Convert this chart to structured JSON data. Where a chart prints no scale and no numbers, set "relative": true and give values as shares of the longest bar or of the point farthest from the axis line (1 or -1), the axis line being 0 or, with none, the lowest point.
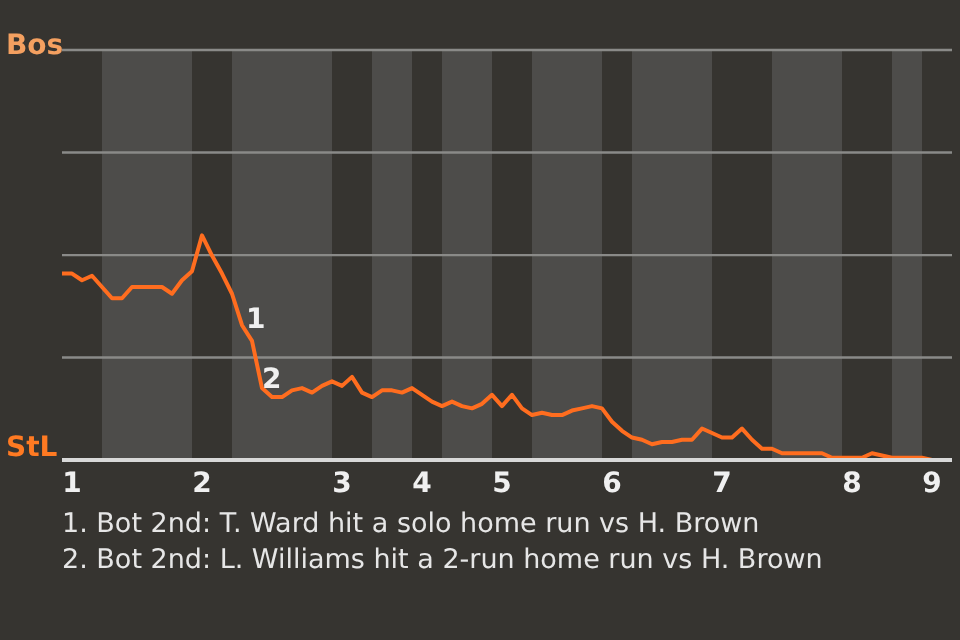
{
  "chart_data": {
    "type": "line",
    "relative": true,
    "categories": [
      null,
      "1",
      null,
      null,
      null,
      null,
      null,
      null,
      null,
      null,
      null,
      null,
      null,
      null,
      "2",
      null,
      null,
      null,
      null,
      null,
      null,
      null,
      null,
      null,
      null,
      null,
      null,
      null,
      "3",
      null,
      null,
      null,
      null,
      null,
      null,
      null,
      "4",
      null,
      null,
      null,
      null,
      null,
      null,
      null,
      "5",
      null,
      null,
      null,
      null,
      null,
      null,
      null,
      null,
      null,
      null,
      "6",
      null,
      null,
      null,
      null,
      null,
      null,
      null,
      null,
      null,
      null,
      "7",
      null,
      null,
      null,
      null,
      null,
      null,
      null,
      null,
      null,
      null,
      null,
      null,
      "8",
      null,
      null,
      null,
      null,
      null,
      null,
      null,
      "9",
      null,
      null
    ],
    "series": [
      {
        "color": "#ff6d1f",
        "values": [
          0.83,
          0.83,
          0.8,
          0.82,
          0.77,
          0.72,
          0.72,
          0.77,
          0.77,
          0.77,
          0.77,
          0.74,
          0.8,
          0.84,
          1,
          0.91,
          0.83,
          0.74,
          0.6,
          0.53,
          0.32,
          0.28,
          0.28,
          0.31,
          0.32,
          0.3,
          0.33,
          0.35,
          0.33,
          0.37,
          0.3,
          0.28,
          0.31,
          0.31,
          0.3,
          0.32,
          0.29,
          0.26,
          0.24,
          0.26,
          0.24,
          0.23,
          0.25,
          0.29,
          0.24,
          0.29,
          0.23,
          0.2,
          0.21,
          0.2,
          0.2,
          0.22,
          0.23,
          0.24,
          0.23,
          0.17,
          0.13,
          0.1,
          0.09,
          0.07,
          0.08,
          0.08,
          0.09,
          0.09,
          0.14,
          0.12,
          0.1,
          0.1,
          0.14,
          0.09,
          0.05,
          0.05,
          0.03,
          0.03,
          0.03,
          0.03,
          0.03,
          0.01,
          0.01,
          0.01,
          0.01,
          0.03,
          0.02,
          0.01,
          0.01,
          0.01,
          0.01,
          0,
          0,
          0
        ],
        "name": null
      }
    ],
    "legend": false,
    "marker": "none",
    "line_style": "solid",
    "ref_lines": [
      {
        "axis": "y",
        "value": 0.456,
        "color": "#8a8a88"
      },
      {
        "axis": "y",
        "value": 0.912,
        "color": "#8a8a88"
      },
      {
        "axis": "y",
        "value": 1.369,
        "color": "#8a8a88"
      },
      {
        "axis": "y",
        "value": 1.825,
        "color": "#8a8a88"
      }
    ],
    "annotations": [
      "Bos",
      "StL",
      "1",
      "2",
      "1. Bot 2nd: T. Ward hit a solo home run vs H. Brown",
      "2. Bot 2nd: L. Williams hit a 2-run home run vs H. Brown"
    ]
  }
}
